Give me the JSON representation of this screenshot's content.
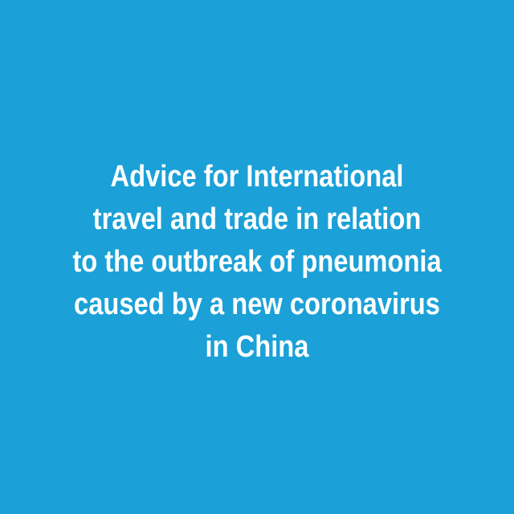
{
  "background_color": "#1ba1d7",
  "text_color": "#ffffff",
  "headline": {
    "lines": [
      "Advice for International",
      "travel and trade in relation",
      "to the outbreak of pneumonia",
      "caused by a new coronavirus",
      "in China"
    ]
  }
}
